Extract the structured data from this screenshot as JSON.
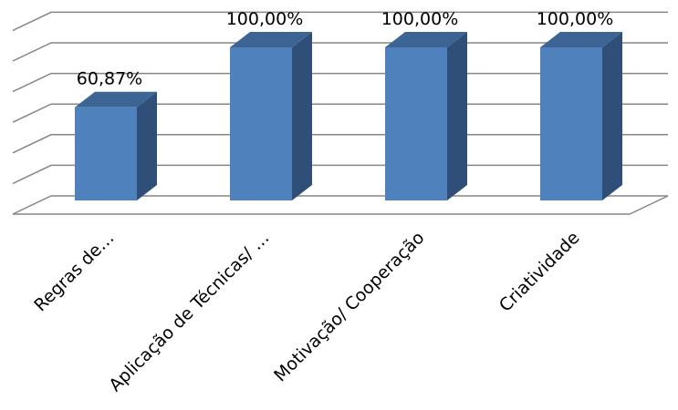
{
  "chart_data": {
    "type": "bar",
    "categories": [
      "Regras de…",
      "Aplicação de Técnicas/ …",
      "Motivação/ Cooperação",
      "Criatividade"
    ],
    "values": [
      60.87,
      100,
      100,
      100
    ],
    "data_labels": [
      "60,87%",
      "100,00%",
      "100,00%",
      "100,00%"
    ],
    "ylim": [
      0,
      120
    ],
    "grid": true,
    "legend": false,
    "title": "",
    "xlabel": "",
    "ylabel": "",
    "colors": {
      "front": "#4f81bd",
      "side": "#2f4f78",
      "top": "#3c6596",
      "grid": "#868686"
    }
  }
}
